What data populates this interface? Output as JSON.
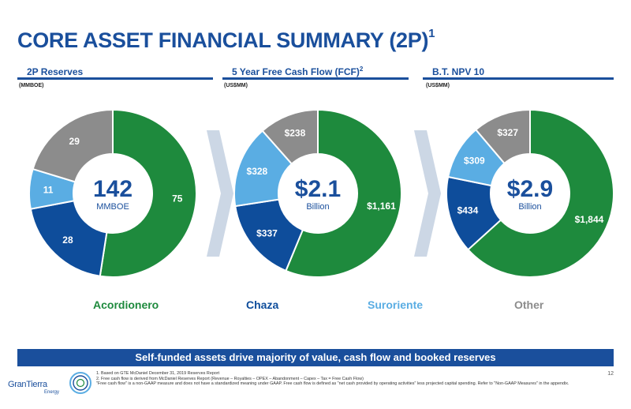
{
  "title": {
    "text": "CORE ASSET FINANCIAL SUMMARY (2P)",
    "sup": "1"
  },
  "sections": [
    {
      "title": "2P Reserves",
      "sup": "",
      "unit": "(MMBOE)"
    },
    {
      "title": "5 Year Free Cash Flow (FCF)",
      "sup": "2",
      "unit": "(US$MM)"
    },
    {
      "title": "B.T. NPV 10",
      "sup": "",
      "unit": "(US$MM)"
    }
  ],
  "colors": {
    "Acordionero": "#1e8a3d",
    "Chaza": "#0e4d9b",
    "Suroriente": "#5aade3",
    "Other": "#8c8c8c",
    "accent": "#1a4f9c",
    "arrow": "#ccd7e5"
  },
  "chart_data": [
    {
      "type": "pie",
      "title": "2P Reserves",
      "unit": "(MMBOE)",
      "center_value": "142",
      "center_label": "MMBOE",
      "labels": [
        "Acordionero",
        "Chaza",
        "Suroriente",
        "Other"
      ],
      "values": [
        75,
        28,
        11,
        29
      ],
      "value_labels": [
        "75",
        "28",
        "11",
        "29"
      ]
    },
    {
      "type": "pie",
      "title": "5 Year Free Cash Flow (FCF)",
      "unit": "(US$MM)",
      "center_value": "$2.1",
      "center_label": "Billion",
      "labels": [
        "Acordionero",
        "Chaza",
        "Suroriente",
        "Other"
      ],
      "values": [
        1161,
        337,
        328,
        238
      ],
      "value_labels": [
        "$1,161",
        "$337",
        "$328",
        "$238"
      ]
    },
    {
      "type": "pie",
      "title": "B.T. NPV 10",
      "unit": "(US$MM)",
      "center_value": "$2.9",
      "center_label": "Billion",
      "labels": [
        "Acordionero",
        "Chaza",
        "Suroriente",
        "Other"
      ],
      "values": [
        1844,
        434,
        309,
        327
      ],
      "value_labels": [
        "$1,844",
        "$434",
        "$309",
        "$327"
      ]
    }
  ],
  "legend": [
    "Acordionero",
    "Chaza",
    "Suroriente",
    "Other"
  ],
  "banner": "Self-funded assets drive majority of value, cash flow and booked reserves",
  "footnotes": [
    "1. Based on GTE McDaniel December 31, 2019 Reserves Report",
    "2. Free cash flow is derived from McDaniel Reserves Report (Revenue – Royalties – OPEX – Abandonment – Capex – Tax = Free Cash Flow)",
    "\"Free cash flow\" is a non-GAAP measure and does not have a standardized meaning under GAAP. Free cash flow is defined as \"net cash provided by operating activities\" less projected capital spending. Refer to \"Non-GAAP Measures\" in the appendix."
  ],
  "logo": {
    "name": "GranTierra",
    "sub": "Energy"
  },
  "page_number": "12"
}
